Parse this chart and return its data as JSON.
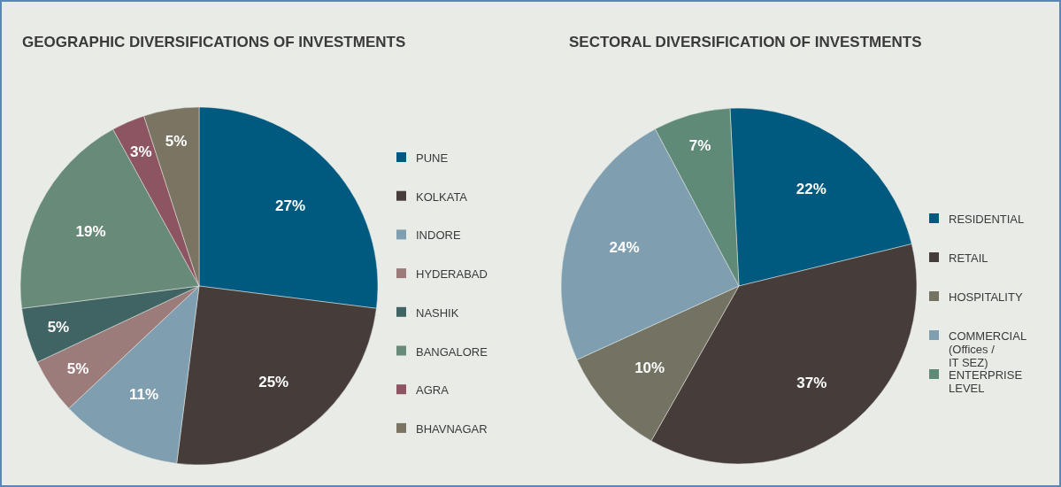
{
  "chart_data": [
    {
      "type": "pie",
      "title": "GEOGRAPHIC DIVERSIFICATIONS OF INVESTMENTS",
      "categories": [
        "PUNE",
        "KOLKATA",
        "INDORE",
        "HYDERABAD",
        "NASHIK",
        "BANGALORE",
        "AGRA",
        "BHAVNAGAR"
      ],
      "values": [
        27,
        25,
        11,
        5,
        5,
        19,
        3,
        5
      ],
      "value_labels": [
        "27%",
        "25%",
        "11%",
        "5%",
        "5%",
        "19%",
        "3%",
        "5%"
      ],
      "colors": [
        "#005a80",
        "#463c3a",
        "#7f9fb0",
        "#9c7b7b",
        "#3f6463",
        "#688a78",
        "#8c5561",
        "#7a7462"
      ],
      "legend": "right"
    },
    {
      "type": "pie",
      "title": "SECTORAL DIVERSIFICATION OF INVESTMENTS",
      "categories": [
        "RESIDENTIAL",
        "RETAIL",
        "HOSPITALITY",
        "COMMERCIAL (Offices / IT SEZ)",
        "ENTERPRISE LEVEL"
      ],
      "values": [
        22,
        37,
        10,
        24,
        7
      ],
      "value_labels": [
        "22%",
        "37%",
        "10%",
        "24%",
        "7%"
      ],
      "colors": [
        "#005a80",
        "#463c3a",
        "#737263",
        "#7f9fb0",
        "#5f8a78"
      ],
      "legend": "right"
    }
  ]
}
